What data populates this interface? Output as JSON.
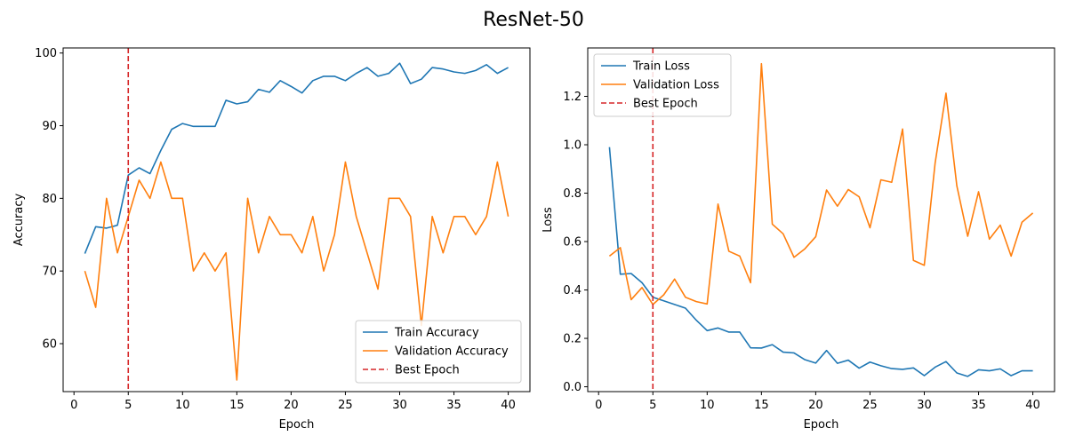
{
  "figure": {
    "suptitle": "ResNet-50"
  },
  "colors": {
    "train": "#1f77b4",
    "validation": "#ff7f0e",
    "best": "#d62728"
  },
  "chart_data": [
    {
      "type": "line",
      "xlabel": "Epoch",
      "ylabel": "Accuracy",
      "xlim": [
        -1,
        42
      ],
      "ylim": [
        53.4,
        100.7
      ],
      "xticks": [
        0,
        5,
        10,
        15,
        20,
        25,
        30,
        35,
        40
      ],
      "yticks": [
        60,
        70,
        80,
        90,
        100
      ],
      "legend_position": "lower-right",
      "best_epoch": 5,
      "x": [
        1,
        2,
        3,
        4,
        5,
        6,
        7,
        8,
        9,
        10,
        11,
        12,
        13,
        14,
        15,
        16,
        17,
        18,
        19,
        20,
        21,
        22,
        23,
        24,
        25,
        26,
        27,
        28,
        29,
        30,
        31,
        32,
        33,
        34,
        35,
        36,
        37,
        38,
        39,
        40
      ],
      "series": [
        {
          "name": "Train Accuracy",
          "color_key": "train",
          "style": "solid",
          "values": [
            72.4,
            76.1,
            75.9,
            76.3,
            83.2,
            84.2,
            83.4,
            86.6,
            89.5,
            90.3,
            89.9,
            89.9,
            89.9,
            93.5,
            93.0,
            93.3,
            95.0,
            94.6,
            96.2,
            95.4,
            94.5,
            96.2,
            96.8,
            96.8,
            96.2,
            97.2,
            98.0,
            96.8,
            97.2,
            98.6,
            95.8,
            96.4,
            98.0,
            97.8,
            97.4,
            97.2,
            97.6,
            98.4,
            97.2,
            98.0
          ]
        },
        {
          "name": "Validation Accuracy",
          "color_key": "validation",
          "style": "solid",
          "values": [
            70,
            65,
            80,
            72.5,
            77.5,
            82.5,
            80,
            85,
            80,
            80,
            70,
            72.5,
            70,
            72.5,
            55,
            80,
            72.5,
            77.5,
            75,
            75,
            72.5,
            77.5,
            70,
            75,
            85,
            77.5,
            72.5,
            67.5,
            80,
            80,
            77.5,
            62.5,
            77.5,
            72.5,
            77.5,
            77.5,
            75,
            77.5,
            85,
            77.5
          ]
        }
      ],
      "legend": [
        "Train Accuracy",
        "Validation Accuracy",
        "Best Epoch"
      ]
    },
    {
      "type": "line",
      "xlabel": "Epoch",
      "ylabel": "Loss",
      "xlim": [
        -1,
        42
      ],
      "ylim": [
        -0.02,
        1.4
      ],
      "xticks": [
        0,
        5,
        10,
        15,
        20,
        25,
        30,
        35,
        40
      ],
      "yticks": [
        0.0,
        0.2,
        0.4,
        0.6,
        0.8,
        1.0,
        1.2
      ],
      "ytick_labels": [
        "0.0",
        "0.2",
        "0.4",
        "0.6",
        "0.8",
        "1.0",
        "1.2"
      ],
      "legend_position": "upper-left",
      "best_epoch": 5,
      "x": [
        1,
        2,
        3,
        4,
        5,
        6,
        7,
        8,
        9,
        10,
        11,
        12,
        13,
        14,
        15,
        16,
        17,
        18,
        19,
        20,
        21,
        22,
        23,
        24,
        25,
        26,
        27,
        28,
        29,
        30,
        31,
        32,
        33,
        34,
        35,
        36,
        37,
        38,
        39,
        40
      ],
      "series": [
        {
          "name": "Train Loss",
          "color_key": "train",
          "style": "solid",
          "values": [
            0.99,
            0.465,
            0.468,
            0.43,
            0.37,
            0.355,
            0.34,
            0.325,
            0.275,
            0.232,
            0.243,
            0.226,
            0.226,
            0.161,
            0.16,
            0.174,
            0.143,
            0.14,
            0.112,
            0.098,
            0.15,
            0.097,
            0.11,
            0.077,
            0.102,
            0.087,
            0.075,
            0.072,
            0.078,
            0.046,
            0.081,
            0.104,
            0.057,
            0.043,
            0.07,
            0.066,
            0.074,
            0.046,
            0.066,
            0.066
          ]
        },
        {
          "name": "Validation Loss",
          "color_key": "validation",
          "style": "solid",
          "values": [
            0.54,
            0.575,
            0.36,
            0.41,
            0.34,
            0.38,
            0.445,
            0.37,
            0.352,
            0.342,
            0.755,
            0.56,
            0.54,
            0.43,
            1.335,
            0.672,
            0.632,
            0.535,
            0.57,
            0.62,
            0.813,
            0.746,
            0.815,
            0.785,
            0.657,
            0.855,
            0.845,
            1.065,
            0.522,
            0.502,
            0.925,
            1.213,
            0.83,
            0.622,
            0.806,
            0.61,
            0.668,
            0.54,
            0.68,
            0.718
          ]
        }
      ],
      "legend": [
        "Train Loss",
        "Validation Loss",
        "Best Epoch"
      ]
    }
  ]
}
